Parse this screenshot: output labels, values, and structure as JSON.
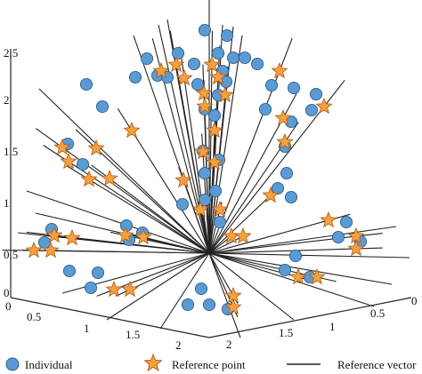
{
  "chart_data": {
    "type": "scatter",
    "projection": "3d",
    "title": "",
    "axes": {
      "vertical": {
        "ticks": [
          "0",
          "0.5",
          "1",
          "1.5",
          "2",
          "2.5"
        ],
        "range": [
          0,
          2.5
        ]
      },
      "left_horizontal": {
        "ticks": [
          "0",
          "0.5",
          "1",
          "1.5",
          "2"
        ],
        "range": [
          0,
          2
        ]
      },
      "right_horizontal": {
        "ticks": [
          "0",
          "0.5",
          "1",
          "1.5",
          "2"
        ],
        "range": [
          0,
          2
        ]
      }
    },
    "legend": {
      "placement": "bottom",
      "items": [
        {
          "label": "Individual",
          "marker": "circle",
          "color": "#5b9bd5"
        },
        {
          "label": "Reference point",
          "marker": "star",
          "color": "#f5a040"
        },
        {
          "label": "Reference vector",
          "marker": "line",
          "color": "#222222"
        }
      ]
    },
    "colors": {
      "individual": "#5b9bd5",
      "individual_edge": "#2f5f8a",
      "reference": "#f5a040",
      "reference_edge": "#b05a10",
      "vector": "#222222"
    },
    "series": [
      {
        "name": "Individual",
        "note_points_in_projected_plot_units": true,
        "points": [
          [
            230,
            34
          ],
          [
            255,
            40
          ],
          [
            200,
            60
          ],
          [
            165,
            66
          ],
          [
            218,
            72
          ],
          [
            245,
            60
          ],
          [
            262,
            65
          ],
          [
            275,
            65
          ],
          [
            289,
            72
          ],
          [
            250,
            80
          ],
          [
            177,
            85
          ],
          [
            152,
            87
          ],
          [
            188,
            87
          ],
          [
            97,
            95
          ],
          [
            222,
            95
          ],
          [
            254,
            92
          ],
          [
            305,
            96
          ],
          [
            330,
            99
          ],
          [
            245,
            107
          ],
          [
            355,
            106
          ],
          [
            115,
            120
          ],
          [
            230,
            123
          ],
          [
            298,
            123
          ],
          [
            350,
            124
          ],
          [
            327,
            137
          ],
          [
            76,
            162
          ],
          [
            241,
            130
          ],
          [
            228,
            170
          ],
          [
            246,
            180
          ],
          [
            320,
            165
          ],
          [
            93,
            185
          ],
          [
            322,
            195
          ],
          [
            230,
            195
          ],
          [
            242,
            215
          ],
          [
            230,
            225
          ],
          [
            205,
            230
          ],
          [
            142,
            254
          ],
          [
            247,
            250
          ],
          [
            327,
            222
          ],
          [
            312,
            212
          ],
          [
            58,
            258
          ],
          [
            50,
            273
          ],
          [
            160,
            262
          ],
          [
            145,
            270
          ],
          [
            389,
            250
          ],
          [
            380,
            267
          ],
          [
            405,
            272
          ],
          [
            332,
            288
          ],
          [
            320,
            304
          ],
          [
            348,
            312
          ],
          [
            110,
            307
          ],
          [
            78,
            305
          ],
          [
            102,
            324
          ],
          [
            226,
            325
          ],
          [
            235,
            343
          ],
          [
            211,
            343
          ],
          [
            256,
            348
          ]
        ]
      },
      {
        "name": "Reference point",
        "points": [
          [
            181,
            80
          ],
          [
            198,
            73
          ],
          [
            238,
            73
          ],
          [
            314,
            80
          ],
          [
            207,
            88
          ],
          [
            245,
            87
          ],
          [
            229,
            105
          ],
          [
            253,
            107
          ],
          [
            364,
            120
          ],
          [
            318,
            133
          ],
          [
            230,
            120
          ],
          [
            148,
            147
          ],
          [
            241,
            147
          ],
          [
            70,
            166
          ],
          [
            108,
            167
          ],
          [
            320,
            160
          ],
          [
            77,
            182
          ],
          [
            228,
            171
          ],
          [
            241,
            183
          ],
          [
            100,
            202
          ],
          [
            123,
            201
          ],
          [
            206,
            203
          ],
          [
            304,
            220
          ],
          [
            225,
            236
          ],
          [
            247,
            236
          ],
          [
            369,
            248
          ],
          [
            61,
            265
          ],
          [
            81,
            268
          ],
          [
            141,
            265
          ],
          [
            161,
            267
          ],
          [
            260,
            266
          ],
          [
            273,
            266
          ],
          [
            400,
            266
          ],
          [
            57,
            282
          ],
          [
            38,
            282
          ],
          [
            400,
            280
          ],
          [
            335,
            312
          ],
          [
            356,
            312
          ],
          [
            128,
            326
          ],
          [
            146,
            326
          ],
          [
            262,
            333
          ],
          [
            262,
            346
          ]
        ]
      }
    ]
  },
  "legend": {
    "individual_label": "Individual",
    "reference_point_label": "Reference point",
    "reference_vector_label": "Reference vector"
  }
}
